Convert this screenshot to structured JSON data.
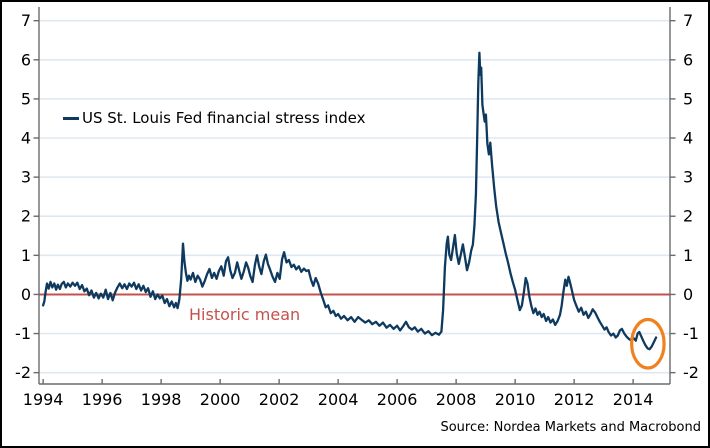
{
  "chart_data": {
    "type": "line",
    "title": "",
    "xlabel": "",
    "ylabel": "",
    "xlim": [
      1993.86,
      2015.25
    ],
    "ylim": [
      -2.29,
      7.35
    ],
    "x_ticks": [
      1994,
      1996,
      1998,
      2000,
      2002,
      2004,
      2006,
      2008,
      2010,
      2012,
      2014
    ],
    "y_ticks": [
      -2,
      -1,
      0,
      1,
      2,
      3,
      4,
      5,
      6,
      7
    ],
    "grid": "horizontal",
    "legend_position": "upper-left-inside",
    "series": [
      {
        "name": "US St. Louis Fed financial stress index",
        "color": "#0f3a5f",
        "points": [
          [
            1994.0,
            -0.28
          ],
          [
            1994.04,
            -0.18
          ],
          [
            1994.08,
            0.05
          ],
          [
            1994.13,
            0.28
          ],
          [
            1994.19,
            0.15
          ],
          [
            1994.25,
            0.32
          ],
          [
            1994.31,
            0.18
          ],
          [
            1994.38,
            0.28
          ],
          [
            1994.44,
            0.12
          ],
          [
            1994.5,
            0.25
          ],
          [
            1994.57,
            0.14
          ],
          [
            1994.63,
            0.27
          ],
          [
            1994.7,
            0.32
          ],
          [
            1994.77,
            0.18
          ],
          [
            1994.84,
            0.28
          ],
          [
            1994.92,
            0.2
          ],
          [
            1995.0,
            0.3
          ],
          [
            1995.08,
            0.22
          ],
          [
            1995.16,
            0.3
          ],
          [
            1995.24,
            0.14
          ],
          [
            1995.32,
            0.24
          ],
          [
            1995.4,
            0.08
          ],
          [
            1995.48,
            0.15
          ],
          [
            1995.56,
            -0.02
          ],
          [
            1995.64,
            0.1
          ],
          [
            1995.72,
            -0.08
          ],
          [
            1995.8,
            0.04
          ],
          [
            1995.88,
            -0.1
          ],
          [
            1995.96,
            0.02
          ],
          [
            1996.04,
            -0.08
          ],
          [
            1996.12,
            0.12
          ],
          [
            1996.2,
            -0.12
          ],
          [
            1996.28,
            0.04
          ],
          [
            1996.36,
            -0.15
          ],
          [
            1996.44,
            0.05
          ],
          [
            1996.52,
            0.18
          ],
          [
            1996.6,
            0.28
          ],
          [
            1996.68,
            0.16
          ],
          [
            1996.76,
            0.26
          ],
          [
            1996.84,
            0.14
          ],
          [
            1996.92,
            0.28
          ],
          [
            1997.0,
            0.2
          ],
          [
            1997.08,
            0.3
          ],
          [
            1997.16,
            0.14
          ],
          [
            1997.24,
            0.26
          ],
          [
            1997.32,
            0.1
          ],
          [
            1997.4,
            0.22
          ],
          [
            1997.48,
            0.06
          ],
          [
            1997.56,
            0.16
          ],
          [
            1997.64,
            -0.06
          ],
          [
            1997.72,
            0.08
          ],
          [
            1997.8,
            -0.12
          ],
          [
            1997.88,
            0.0
          ],
          [
            1997.96,
            -0.1
          ],
          [
            1998.04,
            -0.03
          ],
          [
            1998.12,
            -0.22
          ],
          [
            1998.2,
            -0.12
          ],
          [
            1998.28,
            -0.3
          ],
          [
            1998.36,
            -0.18
          ],
          [
            1998.44,
            -0.33
          ],
          [
            1998.5,
            -0.22
          ],
          [
            1998.56,
            -0.35
          ],
          [
            1998.62,
            -0.12
          ],
          [
            1998.68,
            0.4
          ],
          [
            1998.74,
            1.3
          ],
          [
            1998.79,
            0.85
          ],
          [
            1998.84,
            0.55
          ],
          [
            1998.89,
            0.35
          ],
          [
            1998.94,
            0.48
          ],
          [
            1999.0,
            0.38
          ],
          [
            1999.08,
            0.55
          ],
          [
            1999.16,
            0.32
          ],
          [
            1999.24,
            0.48
          ],
          [
            1999.32,
            0.38
          ],
          [
            1999.4,
            0.2
          ],
          [
            1999.48,
            0.35
          ],
          [
            1999.56,
            0.52
          ],
          [
            1999.64,
            0.65
          ],
          [
            1999.72,
            0.42
          ],
          [
            1999.8,
            0.55
          ],
          [
            1999.88,
            0.4
          ],
          [
            1999.96,
            0.6
          ],
          [
            2000.04,
            0.72
          ],
          [
            2000.12,
            0.48
          ],
          [
            2000.2,
            0.85
          ],
          [
            2000.27,
            0.95
          ],
          [
            2000.34,
            0.62
          ],
          [
            2000.42,
            0.42
          ],
          [
            2000.5,
            0.55
          ],
          [
            2000.58,
            0.82
          ],
          [
            2000.65,
            0.6
          ],
          [
            2000.72,
            0.4
          ],
          [
            2000.8,
            0.58
          ],
          [
            2000.88,
            0.82
          ],
          [
            2000.95,
            0.68
          ],
          [
            2001.02,
            0.48
          ],
          [
            2001.1,
            0.32
          ],
          [
            2001.18,
            0.75
          ],
          [
            2001.25,
            1.0
          ],
          [
            2001.32,
            0.72
          ],
          [
            2001.4,
            0.52
          ],
          [
            2001.48,
            0.85
          ],
          [
            2001.55,
            1.02
          ],
          [
            2001.62,
            0.78
          ],
          [
            2001.7,
            0.62
          ],
          [
            2001.78,
            0.45
          ],
          [
            2001.86,
            0.32
          ],
          [
            2001.94,
            0.55
          ],
          [
            2002.02,
            0.4
          ],
          [
            2002.1,
            0.9
          ],
          [
            2002.17,
            1.08
          ],
          [
            2002.25,
            0.82
          ],
          [
            2002.33,
            0.88
          ],
          [
            2002.42,
            0.7
          ],
          [
            2002.5,
            0.76
          ],
          [
            2002.58,
            0.64
          ],
          [
            2002.67,
            0.72
          ],
          [
            2002.75,
            0.58
          ],
          [
            2002.84,
            0.66
          ],
          [
            2002.92,
            0.6
          ],
          [
            2003.0,
            0.62
          ],
          [
            2003.08,
            0.38
          ],
          [
            2003.16,
            0.22
          ],
          [
            2003.24,
            0.42
          ],
          [
            2003.32,
            0.28
          ],
          [
            2003.41,
            0.05
          ],
          [
            2003.5,
            -0.15
          ],
          [
            2003.58,
            -0.33
          ],
          [
            2003.66,
            -0.28
          ],
          [
            2003.75,
            -0.48
          ],
          [
            2003.84,
            -0.42
          ],
          [
            2003.92,
            -0.55
          ],
          [
            2004.0,
            -0.5
          ],
          [
            2004.1,
            -0.62
          ],
          [
            2004.2,
            -0.55
          ],
          [
            2004.32,
            -0.66
          ],
          [
            2004.44,
            -0.58
          ],
          [
            2004.56,
            -0.7
          ],
          [
            2004.68,
            -0.58
          ],
          [
            2004.8,
            -0.65
          ],
          [
            2004.92,
            -0.72
          ],
          [
            2005.04,
            -0.66
          ],
          [
            2005.16,
            -0.76
          ],
          [
            2005.28,
            -0.7
          ],
          [
            2005.4,
            -0.8
          ],
          [
            2005.52,
            -0.72
          ],
          [
            2005.64,
            -0.85
          ],
          [
            2005.76,
            -0.78
          ],
          [
            2005.88,
            -0.88
          ],
          [
            2006.0,
            -0.8
          ],
          [
            2006.1,
            -0.92
          ],
          [
            2006.2,
            -0.82
          ],
          [
            2006.3,
            -0.7
          ],
          [
            2006.4,
            -0.84
          ],
          [
            2006.5,
            -0.9
          ],
          [
            2006.6,
            -0.84
          ],
          [
            2006.7,
            -0.95
          ],
          [
            2006.82,
            -0.88
          ],
          [
            2006.94,
            -1.0
          ],
          [
            2007.06,
            -0.94
          ],
          [
            2007.18,
            -1.04
          ],
          [
            2007.3,
            -0.98
          ],
          [
            2007.42,
            -1.03
          ],
          [
            2007.5,
            -0.95
          ],
          [
            2007.56,
            -0.4
          ],
          [
            2007.62,
            0.7
          ],
          [
            2007.68,
            1.3
          ],
          [
            2007.72,
            1.48
          ],
          [
            2007.77,
            1.02
          ],
          [
            2007.83,
            0.88
          ],
          [
            2007.89,
            1.18
          ],
          [
            2007.96,
            1.52
          ],
          [
            2008.02,
            1.05
          ],
          [
            2008.09,
            0.78
          ],
          [
            2008.16,
            1.02
          ],
          [
            2008.23,
            1.28
          ],
          [
            2008.3,
            0.95
          ],
          [
            2008.37,
            0.62
          ],
          [
            2008.44,
            0.82
          ],
          [
            2008.51,
            1.12
          ],
          [
            2008.57,
            1.28
          ],
          [
            2008.62,
            1.75
          ],
          [
            2008.67,
            2.55
          ],
          [
            2008.71,
            3.9
          ],
          [
            2008.75,
            5.4
          ],
          [
            2008.79,
            6.18
          ],
          [
            2008.82,
            5.62
          ],
          [
            2008.85,
            5.8
          ],
          [
            2008.89,
            4.85
          ],
          [
            2008.93,
            4.62
          ],
          [
            2008.97,
            4.42
          ],
          [
            2009.01,
            4.6
          ],
          [
            2009.06,
            3.85
          ],
          [
            2009.11,
            3.58
          ],
          [
            2009.16,
            3.88
          ],
          [
            2009.22,
            3.3
          ],
          [
            2009.29,
            2.72
          ],
          [
            2009.36,
            2.25
          ],
          [
            2009.44,
            1.85
          ],
          [
            2009.52,
            1.58
          ],
          [
            2009.6,
            1.32
          ],
          [
            2009.68,
            1.05
          ],
          [
            2009.76,
            0.82
          ],
          [
            2009.84,
            0.55
          ],
          [
            2009.92,
            0.32
          ],
          [
            2010.0,
            0.12
          ],
          [
            2010.08,
            -0.15
          ],
          [
            2010.16,
            -0.4
          ],
          [
            2010.23,
            -0.28
          ],
          [
            2010.3,
            0.08
          ],
          [
            2010.36,
            0.42
          ],
          [
            2010.42,
            0.28
          ],
          [
            2010.48,
            -0.05
          ],
          [
            2010.55,
            -0.3
          ],
          [
            2010.62,
            -0.48
          ],
          [
            2010.69,
            -0.36
          ],
          [
            2010.76,
            -0.52
          ],
          [
            2010.83,
            -0.44
          ],
          [
            2010.9,
            -0.58
          ],
          [
            2010.97,
            -0.5
          ],
          [
            2011.05,
            -0.68
          ],
          [
            2011.12,
            -0.58
          ],
          [
            2011.2,
            -0.72
          ],
          [
            2011.28,
            -0.64
          ],
          [
            2011.36,
            -0.78
          ],
          [
            2011.44,
            -0.68
          ],
          [
            2011.52,
            -0.52
          ],
          [
            2011.58,
            -0.28
          ],
          [
            2011.64,
            0.08
          ],
          [
            2011.7,
            0.38
          ],
          [
            2011.75,
            0.22
          ],
          [
            2011.81,
            0.45
          ],
          [
            2011.87,
            0.28
          ],
          [
            2011.93,
            0.08
          ],
          [
            2012.0,
            -0.14
          ],
          [
            2012.08,
            -0.3
          ],
          [
            2012.16,
            -0.44
          ],
          [
            2012.24,
            -0.34
          ],
          [
            2012.32,
            -0.52
          ],
          [
            2012.4,
            -0.44
          ],
          [
            2012.48,
            -0.6
          ],
          [
            2012.56,
            -0.5
          ],
          [
            2012.63,
            -0.38
          ],
          [
            2012.71,
            -0.46
          ],
          [
            2012.79,
            -0.58
          ],
          [
            2012.87,
            -0.7
          ],
          [
            2012.95,
            -0.8
          ],
          [
            2013.03,
            -0.9
          ],
          [
            2013.1,
            -0.84
          ],
          [
            2013.17,
            -0.96
          ],
          [
            2013.25,
            -1.05
          ],
          [
            2013.33,
            -1.0
          ],
          [
            2013.41,
            -1.1
          ],
          [
            2013.48,
            -1.05
          ],
          [
            2013.55,
            -0.92
          ],
          [
            2013.62,
            -0.88
          ],
          [
            2013.7,
            -1.0
          ],
          [
            2013.78,
            -1.08
          ],
          [
            2013.86,
            -1.14
          ],
          [
            2013.94,
            -1.18
          ],
          [
            2014.02,
            -1.12
          ],
          [
            2014.09,
            -1.18
          ],
          [
            2014.15,
            -1.0
          ],
          [
            2014.21,
            -0.96
          ],
          [
            2014.28,
            -1.08
          ],
          [
            2014.35,
            -1.2
          ],
          [
            2014.42,
            -1.3
          ],
          [
            2014.49,
            -1.38
          ],
          [
            2014.56,
            -1.4
          ],
          [
            2014.63,
            -1.33
          ],
          [
            2014.7,
            -1.22
          ],
          [
            2014.78,
            -1.1
          ]
        ]
      }
    ],
    "annotations": {
      "mean_line": {
        "value": 0,
        "color": "#c5514d",
        "label": "Historic mean"
      },
      "highlight_ellipse": {
        "x": 2014.5,
        "y": -1.26,
        "rx_years": 0.55,
        "ry_units": 0.62,
        "color": "#f0811f",
        "stroke_width": 3.2
      }
    }
  },
  "footer": {
    "source": "Source: Nordea Markets and Macrobond"
  },
  "colors": {
    "axis": "#6b6b6b",
    "grid": "#dfe8f0",
    "tick_label": "#000000",
    "frame_border": "#000000",
    "background": "#ffffff"
  }
}
